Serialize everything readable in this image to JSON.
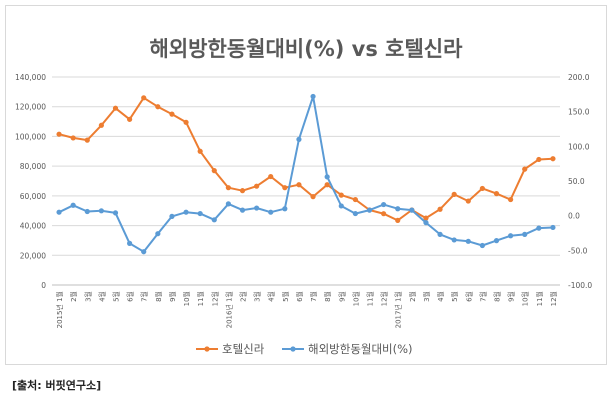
{
  "chart_data": {
    "type": "line",
    "title": "해외방한동월대비(%) vs 호텔신라",
    "x_labels": [
      "2015년 1월",
      "2월",
      "3월",
      "4월",
      "5월",
      "6월",
      "7월",
      "8월",
      "9월",
      "10월",
      "11월",
      "12월",
      "2016년 1월",
      "2월",
      "3월",
      "4월",
      "5월",
      "6월",
      "7월",
      "8월",
      "9월",
      "10월",
      "11월",
      "12월",
      "2017년 1월",
      "2월",
      "3월",
      "4월",
      "5월",
      "6월",
      "7월",
      "8월",
      "9월",
      "10월",
      "11월",
      "12월"
    ],
    "left_axis": {
      "min": 0,
      "max": 140000,
      "step": 20000,
      "tick_labels": [
        "0",
        "20,000",
        "40,000",
        "60,000",
        "80,000",
        "100,000",
        "120,000",
        "140,000"
      ]
    },
    "right_axis": {
      "min": -100,
      "max": 200,
      "step": 50,
      "tick_labels": [
        "-100.0",
        "-50.0",
        "0.0",
        "50.0",
        "100.0",
        "150.0",
        "200.0"
      ]
    },
    "series": [
      {
        "name": "호텔신라",
        "axis": "left",
        "color": "#ED7D31",
        "values": [
          101500,
          99000,
          97500,
          107500,
          119000,
          111500,
          126000,
          120000,
          115000,
          109500,
          90000,
          77000,
          65500,
          63500,
          66500,
          73000,
          65500,
          67500,
          59500,
          67500,
          60500,
          57500,
          50500,
          48000,
          43500,
          50500,
          45000,
          51000,
          61000,
          56500,
          65000,
          61500,
          57500,
          78000,
          84500,
          85000
        ]
      },
      {
        "name": "해외방한동월대비(%)",
        "axis": "right",
        "color": "#5B9BD5",
        "values": [
          5,
          15,
          6,
          7,
          4,
          -40,
          -52,
          -26,
          -1,
          5,
          3,
          -6,
          17,
          8,
          11,
          5,
          10,
          110,
          172,
          56,
          14,
          3,
          8,
          16,
          10,
          8,
          -10,
          -27,
          -35,
          -37,
          -43,
          -36,
          -29,
          -27,
          -18,
          -17
        ]
      }
    ]
  },
  "source": {
    "text": "[출처: 버핏연구소]"
  }
}
